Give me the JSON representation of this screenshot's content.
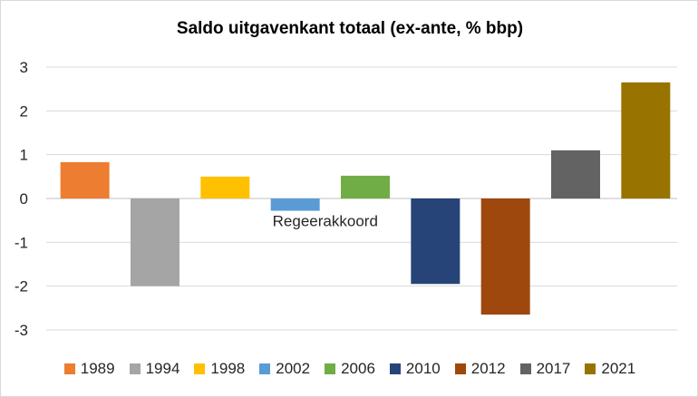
{
  "chart_data": {
    "type": "bar",
    "title": "Saldo uitgavenkant totaal (ex-ante, % bbp)",
    "xlabel": "",
    "ylabel": "",
    "ylim": [
      -3,
      3
    ],
    "yticks": [
      "-3",
      "-2",
      "-1",
      "0",
      "1",
      "2",
      "3"
    ],
    "grid": true,
    "legend_position": "bottom",
    "categories": [
      "1989",
      "1994",
      "1998",
      "2002",
      "2006",
      "2010",
      "2012",
      "2017",
      "2021"
    ],
    "values": [
      0.83,
      -2.0,
      0.5,
      -0.28,
      0.52,
      -1.95,
      -2.65,
      1.1,
      2.65
    ],
    "colors": [
      "#ED7D31",
      "#A5A5A5",
      "#FFC000",
      "#5B9BD5",
      "#70AD47",
      "#264478",
      "#9E480E",
      "#636363",
      "#997300"
    ],
    "annotation": "Regeerakkoord"
  }
}
